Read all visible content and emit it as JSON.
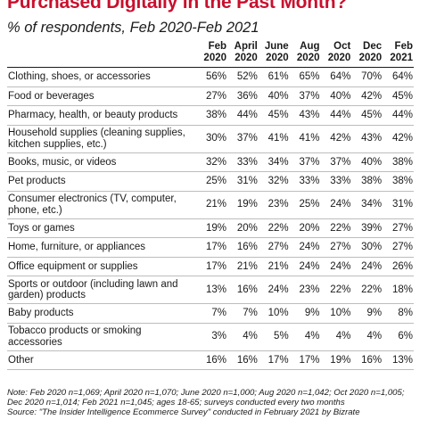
{
  "title": "Purchased Digitally in the Past Month?",
  "subtitle": "% of respondents, Feb 2020-Feb 2021",
  "chart_data": {
    "type": "table",
    "columns": [
      {
        "month": "Feb",
        "year": "2020"
      },
      {
        "month": "April",
        "year": "2020"
      },
      {
        "month": "June",
        "year": "2020"
      },
      {
        "month": "Aug",
        "year": "2020"
      },
      {
        "month": "Oct",
        "year": "2020"
      },
      {
        "month": "Dec",
        "year": "2020"
      },
      {
        "month": "Feb",
        "year": "2021"
      }
    ],
    "rows": [
      {
        "category": "Clothing, shoes, or accessories",
        "lines": 1,
        "values": [
          "56%",
          "52%",
          "61%",
          "65%",
          "64%",
          "70%",
          "64%"
        ]
      },
      {
        "category": "Food or beverages",
        "lines": 1,
        "values": [
          "27%",
          "36%",
          "40%",
          "37%",
          "40%",
          "42%",
          "45%"
        ]
      },
      {
        "category": "Pharmacy, health, or beauty products",
        "lines": 1,
        "values": [
          "38%",
          "44%",
          "45%",
          "43%",
          "44%",
          "45%",
          "44%"
        ]
      },
      {
        "category": "Household supplies (cleaning supplies, kitchen supplies, etc.)",
        "lines": 2,
        "values": [
          "30%",
          "37%",
          "41%",
          "41%",
          "42%",
          "43%",
          "42%"
        ]
      },
      {
        "category": "Books, music, or videos",
        "lines": 1,
        "values": [
          "32%",
          "33%",
          "34%",
          "37%",
          "37%",
          "40%",
          "38%"
        ]
      },
      {
        "category": "Pet products",
        "lines": 1,
        "values": [
          "25%",
          "31%",
          "32%",
          "33%",
          "33%",
          "38%",
          "38%"
        ]
      },
      {
        "category": "Consumer electronics (TV, computer, phone, etc.)",
        "lines": 2,
        "values": [
          "21%",
          "19%",
          "23%",
          "25%",
          "24%",
          "34%",
          "31%"
        ]
      },
      {
        "category": "Toys or games",
        "lines": 1,
        "values": [
          "19%",
          "20%",
          "22%",
          "20%",
          "22%",
          "39%",
          "27%"
        ]
      },
      {
        "category": "Home, furniture, or appliances",
        "lines": 1,
        "values": [
          "17%",
          "16%",
          "27%",
          "24%",
          "27%",
          "30%",
          "27%"
        ]
      },
      {
        "category": "Office equipment or supplies",
        "lines": 1,
        "values": [
          "17%",
          "21%",
          "21%",
          "24%",
          "24%",
          "24%",
          "26%"
        ]
      },
      {
        "category": "Sports or outdoor (including lawn and garden) products",
        "lines": 2,
        "values": [
          "13%",
          "16%",
          "24%",
          "23%",
          "22%",
          "22%",
          "18%"
        ]
      },
      {
        "category": "Baby products",
        "lines": 1,
        "values": [
          "7%",
          "7%",
          "10%",
          "9%",
          "10%",
          "9%",
          "8%"
        ]
      },
      {
        "category": "Tobacco products or smoking accessories",
        "lines": 2,
        "values": [
          "3%",
          "4%",
          "5%",
          "4%",
          "4%",
          "4%",
          "6%"
        ]
      },
      {
        "category": "Other",
        "lines": 1,
        "values": [
          "16%",
          "16%",
          "17%",
          "17%",
          "19%",
          "16%",
          "13%"
        ]
      }
    ]
  },
  "note": "Note: Feb 2020 n=1,069; April 2020 n=1,070; June 2020 n=1,000; Aug 2020 n=1,042; Oct 2020 n=1,005; Dec 2020 n=1,014; Feb 2021 n=1,045; ages 18-65; surveys conducted every two months",
  "source": "Source: \"The Insider Intelligence Ecommerce Survey\" conducted in February 2021 by Bizrate"
}
